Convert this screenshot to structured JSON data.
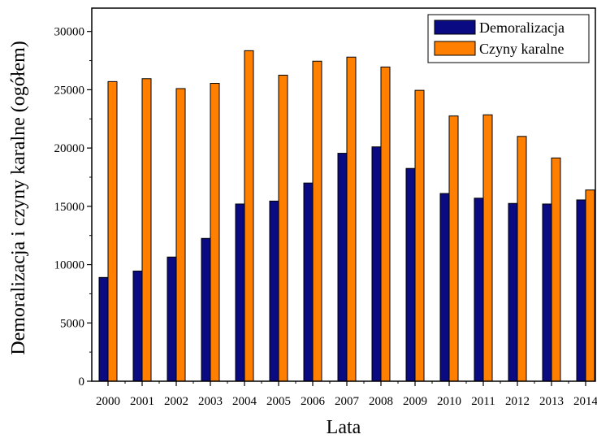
{
  "chart_data": {
    "type": "bar",
    "title": "",
    "xlabel": "Lata",
    "ylabel": "Demoralizacja i czyny karalne (ogółem)",
    "categories": [
      "2000",
      "2001",
      "2002",
      "2003",
      "2004",
      "2005",
      "2006",
      "2007",
      "2008",
      "2009",
      "2010",
      "2011",
      "2012",
      "2013",
      "2014"
    ],
    "series": [
      {
        "name": "Demoralizacja",
        "color": "#0a0a82",
        "values": [
          8900,
          9450,
          10650,
          12250,
          15200,
          15450,
          17000,
          19550,
          20100,
          18250,
          16100,
          15700,
          15250,
          15200,
          15550
        ]
      },
      {
        "name": "Czyny karalne",
        "color": "#ff8000",
        "values": [
          25700,
          25950,
          25100,
          25550,
          28350,
          26250,
          27450,
          27800,
          26950,
          24950,
          22750,
          22850,
          21000,
          19150,
          16400
        ]
      }
    ],
    "ylim": [
      0,
      32000
    ],
    "yticks": [
      0,
      5000,
      10000,
      15000,
      20000,
      25000,
      30000
    ],
    "grid": false,
    "legend_position": "top-right"
  }
}
